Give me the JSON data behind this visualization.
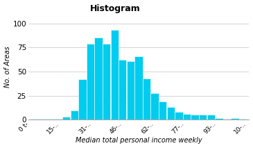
{
  "title": "Histogram",
  "xlabel": "Median total personal income weekly",
  "ylabel": "No. of Areas",
  "bar_color": "#00CCEE",
  "bar_edge_color": "white",
  "background_color": "#ffffff",
  "ylim": [
    0,
    110
  ],
  "yticks": [
    0,
    25,
    50,
    75,
    100
  ],
  "bar_values": [
    1,
    1,
    1,
    1,
    3,
    10,
    42,
    79,
    85,
    79,
    93,
    62,
    61,
    66,
    43,
    28,
    19,
    13,
    8,
    6,
    5,
    5,
    5,
    2,
    1,
    2,
    1
  ],
  "bin_start": 0,
  "bin_width": 4,
  "xtick_positions": [
    0,
    15,
    31,
    46,
    62,
    77,
    93,
    108
  ],
  "xtick_labels": [
    "0 t-",
    "15-··",
    "31-··",
    "46-··",
    "62-··",
    "77-··",
    "93-··",
    "10-··"
  ]
}
